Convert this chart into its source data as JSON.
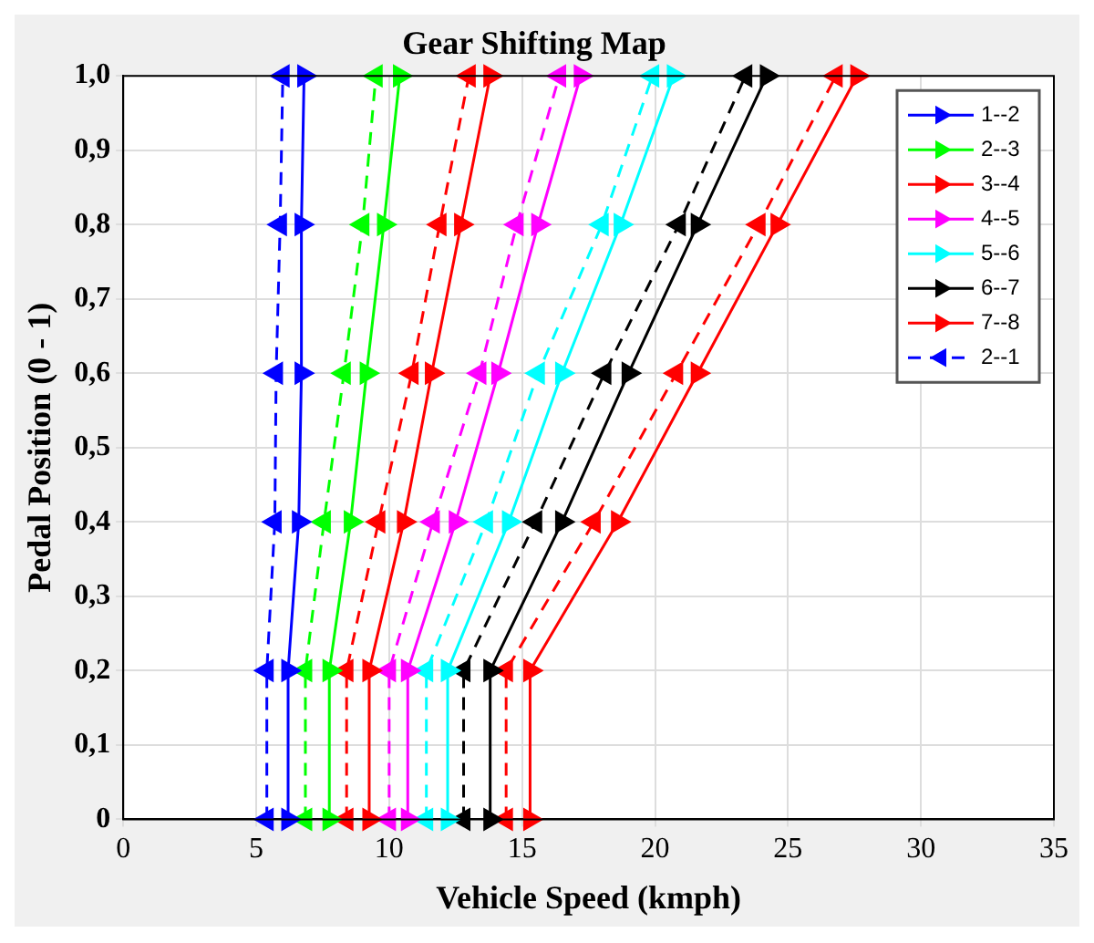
{
  "chart_data": {
    "type": "line",
    "title": "Gear Shifting Map",
    "xlabel": "Vehicle Speed (kmph)",
    "ylabel": "Pedal Position (0 - 1)",
    "xlim": [
      0,
      35
    ],
    "xticks": [
      0,
      5,
      10,
      15,
      20,
      25,
      30,
      35
    ],
    "ylim": [
      0,
      1
    ],
    "yticks": [
      {
        "value": 0,
        "label": "0"
      },
      {
        "value": 0.1,
        "label": "0,1"
      },
      {
        "value": 0.2,
        "label": "0,2"
      },
      {
        "value": 0.3,
        "label": "0,3"
      },
      {
        "value": 0.4,
        "label": "0,4"
      },
      {
        "value": 0.5,
        "label": "0,5"
      },
      {
        "value": 0.6,
        "label": "0,6"
      },
      {
        "value": 0.7,
        "label": "0,7"
      },
      {
        "value": 0.8,
        "label": "0,8"
      },
      {
        "value": 0.9,
        "label": "0,9"
      },
      {
        "value": 1,
        "label": "1,0"
      }
    ],
    "grid": true,
    "legend": "top right",
    "marker": "triangle",
    "series": [
      {
        "name": "1--2",
        "color": "#0000ff",
        "line_style": "solid",
        "x": [
          6.2,
          6.2,
          6.6,
          6.7,
          6.7,
          6.8
        ],
        "values": [
          0,
          0.2,
          0.4,
          0.6,
          0.8,
          1.0
        ]
      },
      {
        "name": "2--3",
        "color": "#00ff00",
        "line_style": "solid",
        "x": [
          7.75,
          7.75,
          8.55,
          9.15,
          9.8,
          10.4
        ],
        "values": [
          0,
          0.2,
          0.4,
          0.6,
          0.8,
          1.0
        ]
      },
      {
        "name": "3--4",
        "color": "#ff0000",
        "line_style": "solid",
        "x": [
          9.25,
          9.25,
          10.55,
          11.6,
          12.7,
          13.8
        ],
        "values": [
          0,
          0.2,
          0.4,
          0.6,
          0.8,
          1.0
        ]
      },
      {
        "name": "4--5",
        "color": "#ff00ff",
        "line_style": "solid",
        "x": [
          10.7,
          10.7,
          12.5,
          14.1,
          15.6,
          17.2
        ],
        "values": [
          0,
          0.2,
          0.4,
          0.6,
          0.8,
          1.0
        ]
      },
      {
        "name": "5--6",
        "color": "#00ffff",
        "line_style": "solid",
        "x": [
          12.2,
          12.2,
          14.5,
          16.5,
          18.7,
          20.7
        ],
        "values": [
          0,
          0.2,
          0.4,
          0.6,
          0.8,
          1.0
        ]
      },
      {
        "name": "6--7",
        "color": "#000000",
        "line_style": "solid",
        "x": [
          13.8,
          13.8,
          16.5,
          19.0,
          21.6,
          24.2
        ],
        "values": [
          0,
          0.2,
          0.4,
          0.6,
          0.8,
          1.0
        ]
      },
      {
        "name": "7--8",
        "color": "#ff0000",
        "line_style": "solid",
        "x": [
          15.3,
          15.3,
          18.6,
          21.6,
          24.6,
          27.6
        ],
        "values": [
          0,
          0.2,
          0.4,
          0.6,
          0.8,
          1.0
        ]
      },
      {
        "name": "2--1",
        "color": "#0000ff",
        "line_style": "dashed",
        "x": [
          5.4,
          5.4,
          5.7,
          5.75,
          5.9,
          6.0
        ],
        "values": [
          0,
          0.2,
          0.4,
          0.6,
          0.8,
          1.0
        ]
      },
      {
        "color": "#00ff00",
        "line_style": "dashed",
        "x": [
          6.85,
          6.85,
          7.55,
          8.3,
          9.0,
          9.5
        ],
        "values": [
          0,
          0.2,
          0.4,
          0.6,
          0.8,
          1.0
        ]
      },
      {
        "color": "#ff0000",
        "line_style": "dashed",
        "x": [
          8.4,
          8.4,
          9.6,
          10.85,
          11.9,
          13.0
        ],
        "values": [
          0,
          0.2,
          0.4,
          0.6,
          0.8,
          1.0
        ]
      },
      {
        "color": "#ff00ff",
        "line_style": "dashed",
        "x": [
          10.0,
          10.0,
          11.65,
          13.4,
          14.8,
          16.4
        ],
        "values": [
          0,
          0.2,
          0.4,
          0.6,
          0.8,
          1.0
        ]
      },
      {
        "color": "#00ffff",
        "line_style": "dashed",
        "x": [
          11.4,
          11.4,
          13.65,
          15.6,
          18.0,
          19.9
        ],
        "values": [
          0,
          0.2,
          0.4,
          0.6,
          0.8,
          1.0
        ]
      },
      {
        "color": "#000000",
        "line_style": "dashed",
        "x": [
          12.8,
          12.8,
          15.5,
          18.1,
          20.9,
          23.4
        ],
        "values": [
          0,
          0.2,
          0.4,
          0.6,
          0.8,
          1.0
        ]
      },
      {
        "color": "#ff0000",
        "line_style": "dashed",
        "x": [
          14.4,
          14.4,
          17.7,
          20.8,
          23.9,
          26.8
        ],
        "values": [
          0,
          0.2,
          0.4,
          0.6,
          0.8,
          1.0
        ]
      }
    ]
  }
}
